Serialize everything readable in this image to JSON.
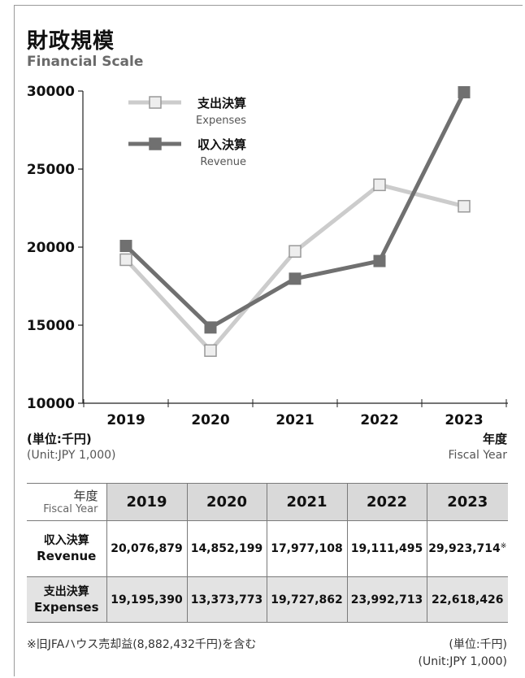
{
  "header": {
    "title": "財政規模",
    "subtitle": "Financial Scale"
  },
  "chart_data": {
    "type": "line",
    "title": "財政規模",
    "subtitle": "Financial Scale",
    "categories": [
      "2019",
      "2020",
      "2021",
      "2022",
      "2023"
    ],
    "series": [
      {
        "name": "支出決算",
        "name_en": "Expenses",
        "values": [
          19195.39,
          13373.773,
          19727.862,
          23992.713,
          22618.426
        ],
        "color": "#cccccc"
      },
      {
        "name": "収入決算",
        "name_en": "Revenue",
        "values": [
          20076.879,
          14852.199,
          17977.108,
          19111.495,
          29923.714
        ],
        "color": "#707070"
      }
    ],
    "yticks": [
      "10000",
      "15000",
      "20000",
      "25000",
      "30000"
    ],
    "ylim": [
      10000,
      30000
    ],
    "x_label_ja": "年度",
    "x_label_en": "Fiscal Year",
    "unit_ja": "(単位:千円)",
    "unit_en": "(Unit:JPY 1,000)",
    "grid": false,
    "legend_position": "top-left"
  },
  "table": {
    "corner_ja": "年度",
    "corner_en": "Fiscal Year",
    "years": [
      "2019",
      "2020",
      "2021",
      "2022",
      "2023"
    ],
    "rows": [
      {
        "label_ja": "収入決算",
        "label_en": "Revenue",
        "cells": [
          "20,076,879",
          "14,852,199",
          "17,977,108",
          "19,111,495",
          "29,923,714"
        ]
      },
      {
        "label_ja": "支出決算",
        "label_en": "Expenses",
        "cells": [
          "19,195,390",
          "13,373,773",
          "19,727,862",
          "23,992,713",
          "22,618,426"
        ]
      }
    ],
    "footnote_mark": "※"
  },
  "footer": {
    "note": "※旧JFAハウス売却益(8,882,432千円)を含む",
    "unit_ja": "(単位:千円)",
    "unit_en": "(Unit:JPY 1,000)"
  }
}
